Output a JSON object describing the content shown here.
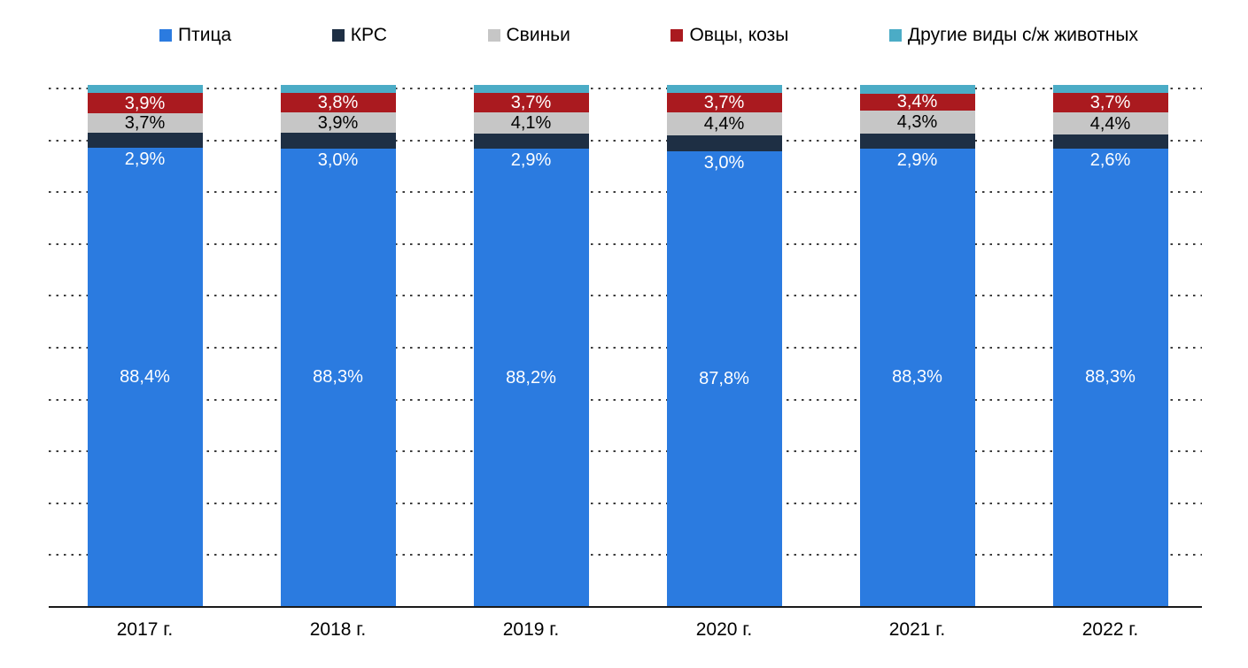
{
  "legend": {
    "items": [
      {
        "label": "Птица",
        "color": "#2b7be0"
      },
      {
        "label": "КРС",
        "color": "#1e2f44"
      },
      {
        "label": "Свиньи",
        "color": "#c6c6c6"
      },
      {
        "label": "Овцы, козы",
        "color": "#aa1a1f"
      },
      {
        "label": "Другие виды с/ж животных",
        "color": "#4bacc6"
      }
    ]
  },
  "chart_data": {
    "type": "bar",
    "stacked": true,
    "percent_stacked": true,
    "title": "",
    "xlabel": "",
    "ylabel": "",
    "ylim": [
      0,
      100
    ],
    "legend_position": "top",
    "grid": {
      "style": "dotted",
      "axis": "y",
      "interval_pct": 10,
      "color": "#3c3c3c"
    },
    "categories": [
      "2017 г.",
      "2018 г.",
      "2019 г.",
      "2020 г.",
      "2021 г.",
      "2022 г."
    ],
    "series": [
      {
        "key": "poultry",
        "name": "Птица",
        "color": "#2b7be0",
        "label_color": "#ffffff",
        "label_style": "center",
        "values": [
          88.4,
          88.3,
          88.2,
          87.8,
          88.3,
          88.3
        ],
        "labels": [
          "88,4%",
          "88,3%",
          "88,2%",
          "87,8%",
          "88,3%",
          "88,3%"
        ]
      },
      {
        "key": "cattle",
        "name": "КРС",
        "color": "#1e2f44",
        "label_color": "#ffffff",
        "label_style": "below-band",
        "values": [
          2.9,
          3.0,
          2.9,
          3.0,
          2.9,
          2.6
        ],
        "labels": [
          "2,9%",
          "3,0%",
          "2,9%",
          "3,0%",
          "2,9%",
          "2,6%"
        ]
      },
      {
        "key": "pigs",
        "name": "Свиньи",
        "color": "#c6c6c6",
        "label_color": "#000000",
        "label_style": "center",
        "values": [
          3.7,
          3.9,
          4.1,
          4.4,
          4.3,
          4.4
        ],
        "labels": [
          "3,7%",
          "3,9%",
          "4,1%",
          "4,4%",
          "4,3%",
          "4,4%"
        ]
      },
      {
        "key": "sheep-goats",
        "name": "Овцы, козы",
        "color": "#aa1a1f",
        "label_color": "#ffffff",
        "label_style": "center",
        "values": [
          3.9,
          3.8,
          3.7,
          3.7,
          3.4,
          3.7
        ],
        "labels": [
          "3,9%",
          "3,8%",
          "3,7%",
          "3,7%",
          "3,4%",
          "3,7%"
        ]
      },
      {
        "key": "other-animals",
        "name": "Другие виды с/ж животных",
        "color": "#4bacc6",
        "label_color": "",
        "label_style": "none",
        "values": [
          1.1,
          1.0,
          1.1,
          1.1,
          1.1,
          1.0
        ],
        "labels": [
          "",
          "",
          "",
          "",
          "",
          ""
        ]
      }
    ]
  }
}
